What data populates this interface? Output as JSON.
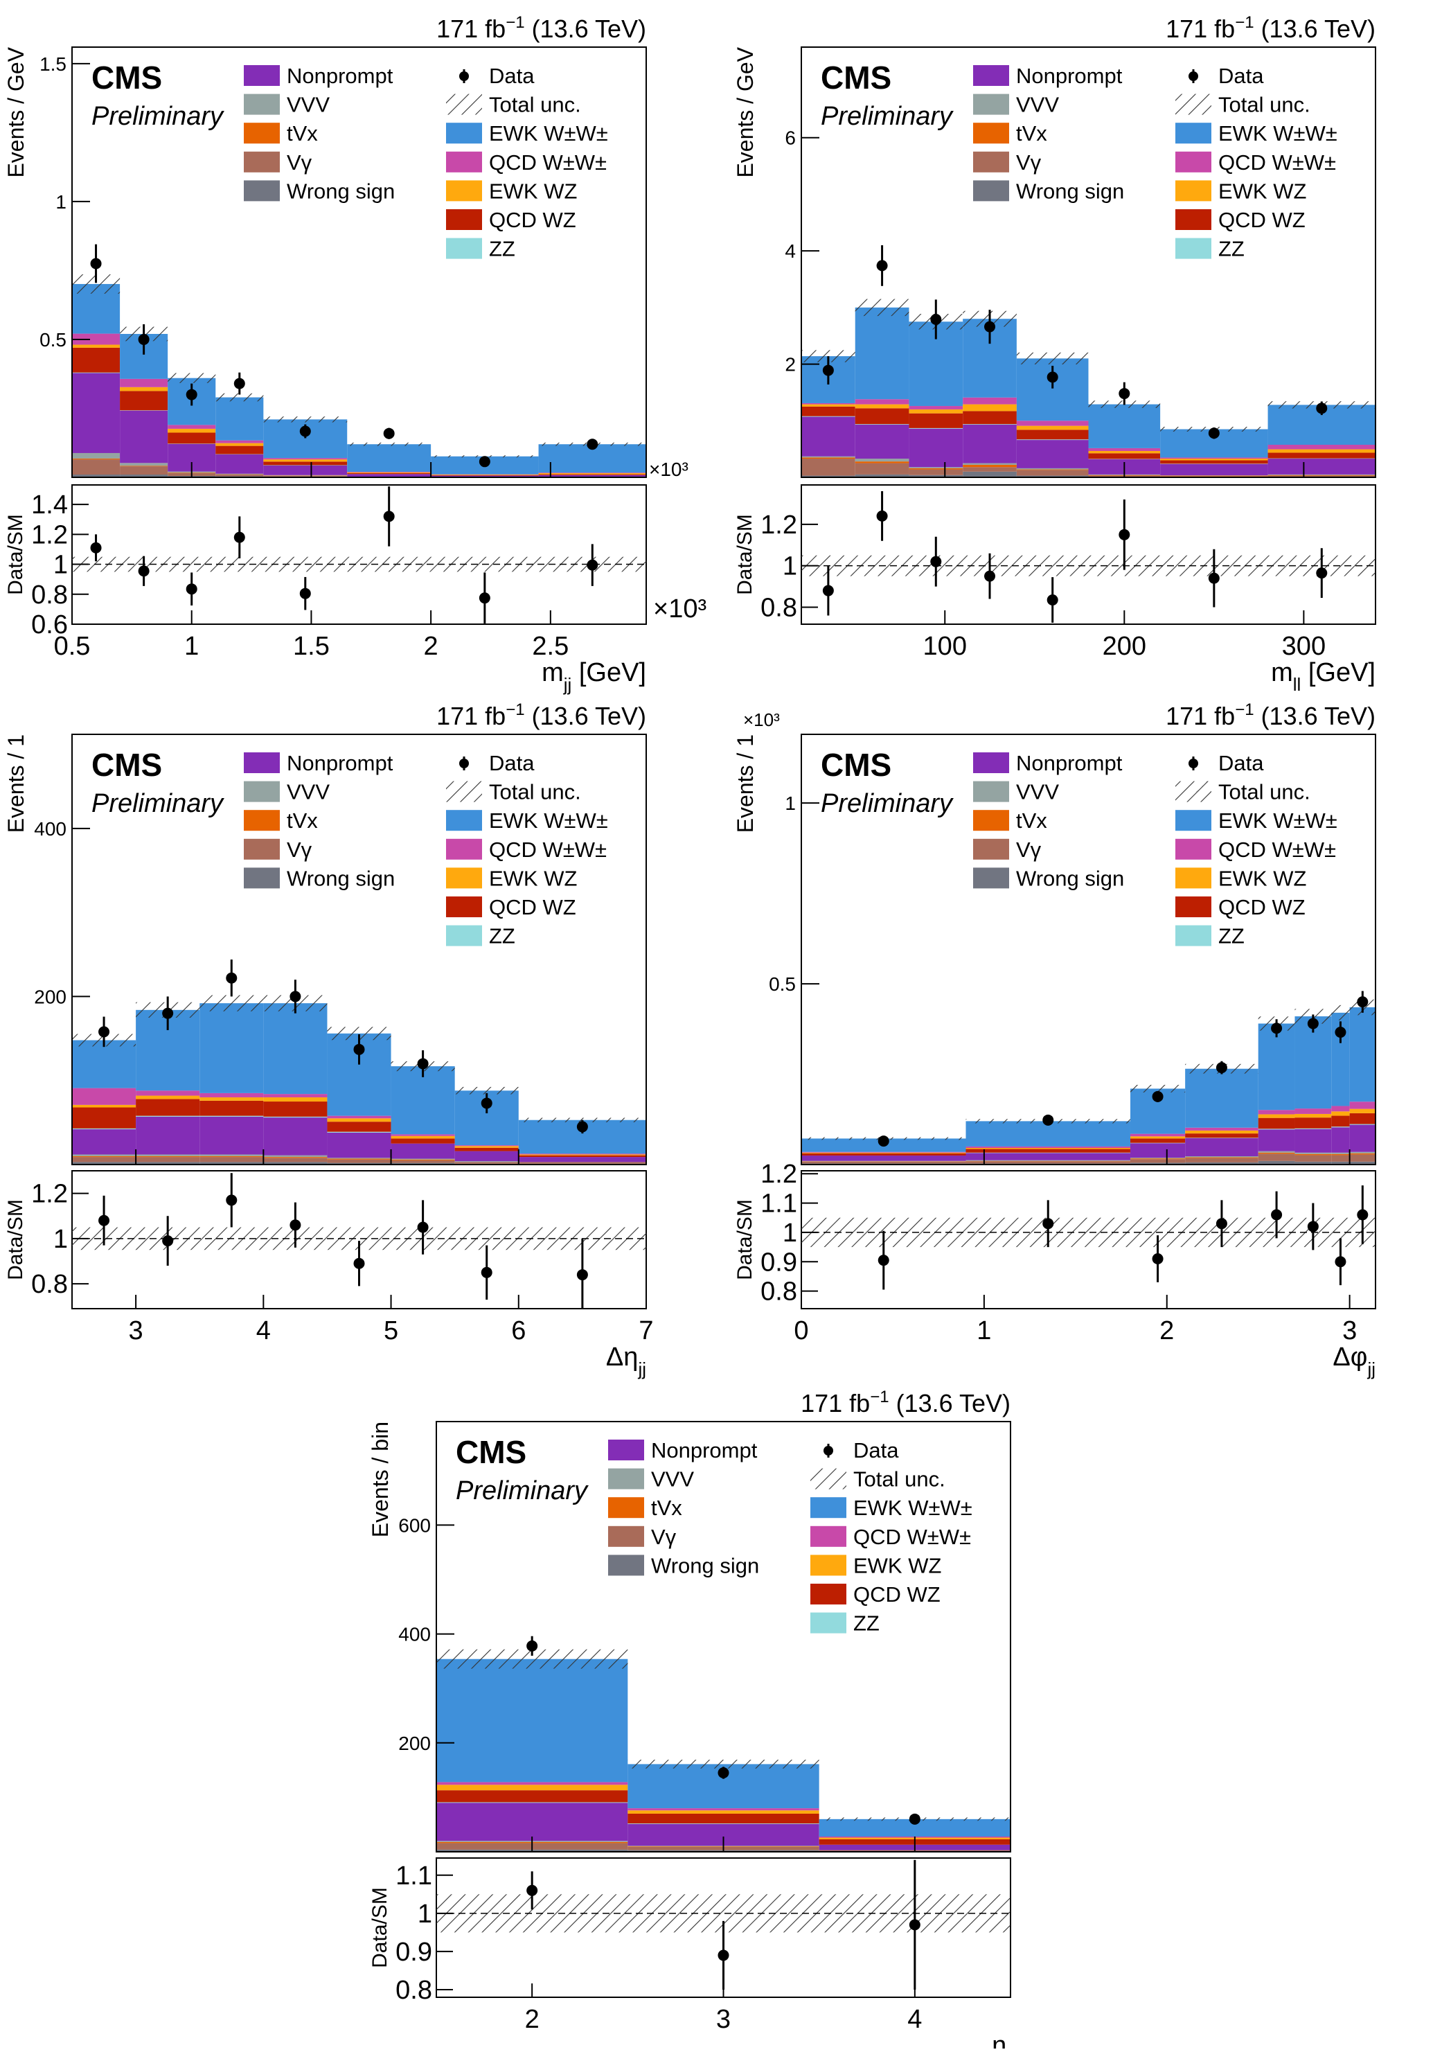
{
  "lumi": {
    "main": "171 fb",
    "sup": "−1",
    "rest": " (13.6 TeV)"
  },
  "cms_label": "CMS",
  "preliminary_label": "Preliminary",
  "ratio_ylabel": "Data/SM",
  "multiplier": "×10³",
  "legend": {
    "left": [
      {
        "key": "np",
        "label": "Nonprompt",
        "color": "#832db6"
      },
      {
        "key": "vvv",
        "label": "VVV",
        "color": "#94a4a2"
      },
      {
        "key": "tvx",
        "label": "tVx",
        "color": "#e76300"
      },
      {
        "key": "vg",
        "label": "Vγ",
        "color": "#a96b59"
      },
      {
        "key": "ws",
        "label": "Wrong sign",
        "color": "#717581"
      }
    ],
    "right": [
      {
        "key": "data",
        "label": "Data"
      },
      {
        "key": "unc",
        "label": "Total unc."
      },
      {
        "key": "ewkww",
        "label": "EWK W±W±",
        "color": "#3f90da"
      },
      {
        "key": "qcdww",
        "label": "QCD W±W±",
        "color": "#c849a9"
      },
      {
        "key": "ewkwz",
        "label": "EWK WZ",
        "color": "#ffa90e"
      },
      {
        "key": "qcdwz",
        "label": "QCD WZ",
        "color": "#bd1f01"
      },
      {
        "key": "zz",
        "label": "ZZ",
        "color": "#92dadd"
      }
    ]
  },
  "stack_order": [
    "ws",
    "vg",
    "tvx",
    "vvv",
    "np",
    "zz",
    "qcdwz",
    "ewkwz",
    "qcdww",
    "ewkww"
  ],
  "chart_data": [
    {
      "type": "bar",
      "stacked": true,
      "ylabel": "Events / GeV",
      "xlabel": {
        "main": "m",
        "sub": "jj",
        "rest": " [GeV]"
      },
      "x_multiplier": "×10³",
      "edges": [
        0.5,
        0.7,
        0.9,
        1.1,
        1.3,
        1.65,
        2.0,
        2.45,
        2.9
      ],
      "xlim": [
        0.5,
        2.9
      ],
      "xticks": [
        0.5,
        1,
        1.5,
        2,
        2.5
      ],
      "ylim": [
        0,
        1.56
      ],
      "yticks": [
        0.5,
        1,
        1.5
      ],
      "stack": {
        "ws": [
          0.01,
          0.01,
          0.005,
          0.004,
          0.003,
          0.001,
          0.001,
          0.001
        ],
        "vg": [
          0.055,
          0.03,
          0.01,
          0.006,
          0.003,
          0.001,
          0.001,
          0.001
        ],
        "tvx": [
          0.003,
          0.002,
          0.002,
          0.001,
          0.001,
          0,
          0,
          0
        ],
        "vvv": [
          0.02,
          0.01,
          0.004,
          0.002,
          0.001,
          0,
          0,
          0
        ],
        "np": [
          0.29,
          0.19,
          0.1,
          0.07,
          0.035,
          0.01,
          0.004,
          0.006
        ],
        "zz": [
          0.002,
          0.001,
          0.001,
          0.001,
          0.001,
          0,
          0,
          0
        ],
        "qcdwz": [
          0.09,
          0.07,
          0.04,
          0.03,
          0.013,
          0.003,
          0.002,
          0.003
        ],
        "ewkwz": [
          0.011,
          0.014,
          0.014,
          0.01,
          0.008,
          0.003,
          0.002,
          0.004
        ],
        "qcdww": [
          0.04,
          0.03,
          0.014,
          0.01,
          0.005,
          0.002,
          0.001,
          0.002
        ],
        "ewkww": [
          0.18,
          0.163,
          0.17,
          0.156,
          0.14,
          0.1,
          0.065,
          0.103
        ]
      },
      "data": [
        0.775,
        0.5,
        0.3,
        0.34,
        0.167,
        0.159,
        0.057,
        0.12
      ],
      "data_err": [
        0.07,
        0.055,
        0.04,
        0.04,
        0.025,
        0.02,
        0.012,
        0.015
      ],
      "ratio": [
        1.11,
        0.955,
        0.835,
        1.18,
        0.805,
        1.32,
        0.775,
        0.995
      ],
      "ratio_err": [
        0.09,
        0.1,
        0.11,
        0.14,
        0.11,
        0.2,
        0.17,
        0.14
      ],
      "ratio_ylim": [
        0.6,
        1.53
      ],
      "ratio_yticks": [
        0.6,
        0.8,
        1,
        1.2,
        1.4
      ]
    },
    {
      "type": "bar",
      "stacked": true,
      "ylabel": "Events / GeV",
      "xlabel": {
        "main": "m",
        "sub": "ll",
        "rest": " [GeV]"
      },
      "edges": [
        20,
        50,
        80,
        110,
        140,
        180,
        220,
        280,
        340
      ],
      "xlim": [
        20,
        340
      ],
      "xticks": [
        100,
        200,
        300
      ],
      "ylim": [
        0,
        7.6
      ],
      "yticks": [
        2,
        4,
        6
      ],
      "stack": {
        "ws": [
          0.03,
          0.05,
          0.04,
          0.1,
          0.03,
          0.01,
          0.01,
          0.01
        ],
        "vg": [
          0.3,
          0.2,
          0.1,
          0.08,
          0.1,
          0.02,
          0.01,
          0.02
        ],
        "tvx": [
          0.02,
          0.03,
          0.02,
          0.04,
          0.01,
          0.01,
          0.01,
          0.01
        ],
        "vvv": [
          0.02,
          0.05,
          0.02,
          0.03,
          0.02,
          0.01,
          0.005,
          0.01
        ],
        "np": [
          0.7,
          0.6,
          0.68,
          0.68,
          0.5,
          0.27,
          0.2,
          0.28
        ],
        "zz": [
          0.01,
          0.01,
          0.01,
          0.01,
          0.01,
          0.005,
          0.005,
          0.005
        ],
        "qcdwz": [
          0.17,
          0.28,
          0.26,
          0.23,
          0.17,
          0.1,
          0.06,
          0.1
        ],
        "ewkwz": [
          0.04,
          0.07,
          0.07,
          0.12,
          0.07,
          0.04,
          0.03,
          0.06
        ],
        "qcdww": [
          0.02,
          0.09,
          0.06,
          0.12,
          0.09,
          0.05,
          0.02,
          0.08
        ],
        "ewkww": [
          0.83,
          1.62,
          1.49,
          1.39,
          1.1,
          0.775,
          0.5,
          0.705
        ]
      },
      "data": [
        1.89,
        3.74,
        2.79,
        2.66,
        1.77,
        1.48,
        0.78,
        1.22
      ],
      "data_err": [
        0.25,
        0.36,
        0.35,
        0.3,
        0.2,
        0.2,
        0.1,
        0.12
      ],
      "ratio": [
        0.88,
        1.24,
        1.02,
        0.95,
        0.835,
        1.15,
        0.94,
        0.965
      ],
      "ratio_err": [
        0.12,
        0.12,
        0.12,
        0.11,
        0.11,
        0.17,
        0.14,
        0.12
      ],
      "ratio_ylim": [
        0.718,
        1.39
      ],
      "ratio_yticks": [
        0.8,
        1,
        1.2
      ]
    },
    {
      "type": "bar",
      "stacked": true,
      "ylabel": "Events / 1",
      "xlabel": {
        "main": "Δη",
        "sub": "jj",
        "rest": ""
      },
      "edges": [
        2.5,
        3,
        3.5,
        4,
        4.5,
        5,
        5.5,
        6,
        7
      ],
      "xlim": [
        2.5,
        7
      ],
      "xticks": [
        3,
        4,
        5,
        6,
        7
      ],
      "ylim": [
        0,
        512
      ],
      "yticks": [
        200,
        400
      ],
      "stack": {
        "ws": [
          3,
          3,
          3,
          3,
          2,
          2,
          1,
          1
        ],
        "vg": [
          6,
          6,
          6,
          5,
          4,
          3,
          2,
          2
        ],
        "tvx": [
          1,
          1,
          1,
          1,
          1,
          1,
          0,
          0
        ],
        "vvv": [
          2,
          2,
          2,
          2,
          1,
          1,
          1,
          0
        ],
        "np": [
          30,
          45,
          45,
          45,
          30,
          18,
          12,
          6
        ],
        "zz": [
          1,
          1,
          1,
          1,
          1,
          0,
          0,
          0
        ],
        "qcdwz": [
          25,
          20,
          18,
          18,
          12,
          6,
          4,
          2
        ],
        "ewkwz": [
          3,
          4,
          4,
          5,
          4,
          3,
          2,
          1
        ],
        "qcdww": [
          20,
          6,
          5,
          4,
          3,
          2,
          1,
          1
        ],
        "ewkww": [
          57,
          96,
          107,
          108,
          98,
          81,
          65,
          40
        ]
      },
      "data": [
        158,
        180,
        222,
        200,
        137,
        120,
        73,
        45
      ],
      "data_err": [
        18,
        20,
        22,
        20,
        18,
        16,
        12,
        8
      ],
      "ratio": [
        1.08,
        0.99,
        1.17,
        1.06,
        0.89,
        1.05,
        0.85,
        0.84
      ],
      "ratio_err": [
        0.11,
        0.11,
        0.12,
        0.1,
        0.1,
        0.12,
        0.12,
        0.16
      ],
      "ratio_ylim": [
        0.69,
        1.3
      ],
      "ratio_yticks": [
        0.8,
        1,
        1.2
      ]
    },
    {
      "type": "bar",
      "stacked": true,
      "ylabel": "Events / 1",
      "y_multiplier": "×10³",
      "xlabel": {
        "main": "Δφ",
        "sub": "jj",
        "rest": ""
      },
      "edges": [
        0,
        0.9,
        1.8,
        2.1,
        2.5,
        2.7,
        2.9,
        3.0,
        3.1416
      ],
      "xlim": [
        0,
        3.1416
      ],
      "xticks": [
        0,
        1,
        2,
        3
      ],
      "ylim": [
        0,
        1.19
      ],
      "yticks": [
        0.5,
        1
      ],
      "stack": {
        "ws": [
          0.003,
          0.003,
          0.005,
          0.006,
          0.01,
          0.008,
          0.008,
          0.008
        ],
        "vg": [
          0.005,
          0.006,
          0.01,
          0.012,
          0.02,
          0.018,
          0.018,
          0.02
        ],
        "tvx": [
          0.001,
          0.001,
          0.002,
          0.002,
          0.003,
          0.003,
          0.003,
          0.003
        ],
        "vvv": [
          0.001,
          0.002,
          0.002,
          0.003,
          0.004,
          0.004,
          0.004,
          0.004
        ],
        "np": [
          0.015,
          0.02,
          0.04,
          0.05,
          0.06,
          0.065,
          0.07,
          0.075
        ],
        "zz": [
          0,
          0.001,
          0.001,
          0.001,
          0.002,
          0.002,
          0.002,
          0.002
        ],
        "qcdwz": [
          0.006,
          0.01,
          0.012,
          0.012,
          0.03,
          0.03,
          0.03,
          0.03
        ],
        "ewkwz": [
          0.002,
          0.003,
          0.006,
          0.008,
          0.01,
          0.01,
          0.012,
          0.012
        ],
        "qcdww": [
          0.002,
          0.004,
          0.007,
          0.008,
          0.012,
          0.015,
          0.015,
          0.02
        ],
        "ewkww": [
          0.037,
          0.07,
          0.125,
          0.163,
          0.239,
          0.255,
          0.258,
          0.261
        ]
      },
      "data": [
        0.065,
        0.123,
        0.188,
        0.268,
        0.377,
        0.39,
        0.366,
        0.45
      ],
      "data_err": [
        0.008,
        0.01,
        0.015,
        0.018,
        0.025,
        0.025,
        0.03,
        0.03
      ],
      "ratio": [
        0.905,
        1.03,
        0.91,
        1.03,
        1.06,
        1.02,
        0.9,
        1.06
      ],
      "ratio_err": [
        0.1,
        0.08,
        0.08,
        0.08,
        0.08,
        0.08,
        0.08,
        0.1
      ],
      "ratio_ylim": [
        0.74,
        1.21
      ],
      "ratio_yticks": [
        0.8,
        0.9,
        1,
        1.1,
        1.2
      ]
    },
    {
      "type": "bar",
      "stacked": true,
      "ylabel": "Events / bin",
      "xlabel": {
        "main": "n",
        "sub": "j",
        "rest": ""
      },
      "edges": [
        1.5,
        2.5,
        3.5,
        4.5
      ],
      "xlim": [
        1.5,
        4.5
      ],
      "xticks": [
        2,
        3,
        4
      ],
      "ylim": [
        0,
        790
      ],
      "yticks": [
        200,
        400,
        600
      ],
      "stack": {
        "ws": [
          4,
          3,
          1
        ],
        "vg": [
          12,
          6,
          2
        ],
        "tvx": [
          2,
          1,
          0
        ],
        "vvv": [
          2,
          1,
          0
        ],
        "np": [
          70,
          40,
          10
        ],
        "zz": [
          1,
          1,
          0
        ],
        "qcdwz": [
          22,
          18,
          10
        ],
        "ewkwz": [
          10,
          6,
          3
        ],
        "qcdww": [
          5,
          4,
          2
        ],
        "ewkww": [
          226,
          81,
          32
        ]
      },
      "data": [
        378,
        145,
        60
      ],
      "data_err": [
        18,
        11,
        7
      ],
      "ratio": [
        1.06,
        0.89,
        0.97
      ],
      "ratio_err": [
        0.05,
        0.09,
        0.17
      ],
      "ratio_ylim": [
        0.78,
        1.145
      ],
      "ratio_yticks": [
        0.8,
        0.9,
        1,
        1.1
      ]
    }
  ]
}
